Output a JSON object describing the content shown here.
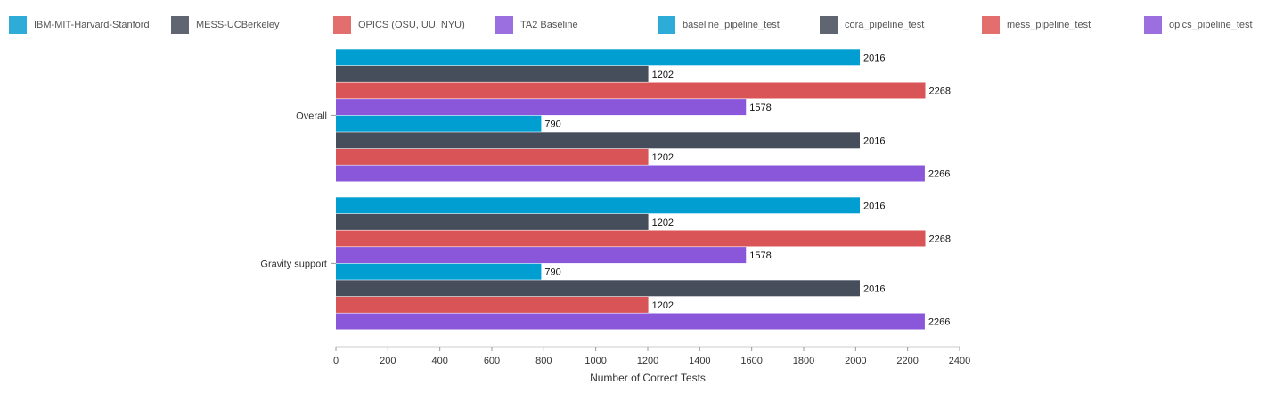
{
  "chart_data": {
    "type": "bar",
    "orientation": "horizontal",
    "categories": [
      "Overall",
      "Gravity support"
    ],
    "legend": [
      {
        "name": "IBM-MIT-Harvard-Stanford",
        "color": "#2cacd6"
      },
      {
        "name": "MESS-UCBerkeley",
        "color": "#5f6672"
      },
      {
        "name": "OPICS (OSU, UU, NYU)",
        "color": "#e36e6e"
      },
      {
        "name": "TA2 Baseline",
        "color": "#9b6fdf"
      },
      {
        "name": "baseline_pipeline_test",
        "color": "#2cacd6"
      },
      {
        "name": "cora_pipeline_test",
        "color": "#5f6672"
      },
      {
        "name": "mess_pipeline_test",
        "color": "#e36e6e"
      },
      {
        "name": "opics_pipeline_test",
        "color": "#9b6fdf"
      }
    ],
    "series": [
      {
        "name": "IBM-MIT-Harvard-Stanford",
        "color": "#019fd1",
        "values": [
          2016,
          2016
        ]
      },
      {
        "name": "MESS-UCBerkeley",
        "color": "#464d5b",
        "values": [
          1202,
          1202
        ]
      },
      {
        "name": "OPICS (OSU, UU, NYU)",
        "color": "#d95456",
        "values": [
          2268,
          2268
        ]
      },
      {
        "name": "TA2 Baseline",
        "color": "#8a57db",
        "values": [
          1578,
          1578
        ]
      },
      {
        "name": "baseline_pipeline_test",
        "color": "#019fd1",
        "values": [
          790,
          790
        ]
      },
      {
        "name": "cora_pipeline_test",
        "color": "#464d5b",
        "values": [
          2016,
          2016
        ]
      },
      {
        "name": "mess_pipeline_test",
        "color": "#d95456",
        "values": [
          1202,
          1202
        ]
      },
      {
        "name": "opics_pipeline_test",
        "color": "#8a57db",
        "values": [
          2266,
          2266
        ]
      }
    ],
    "xlabel": "Number of Correct Tests",
    "ylabel": "",
    "title": "",
    "xlim": [
      0,
      2400
    ],
    "xticks": [
      0,
      200,
      400,
      600,
      800,
      1000,
      1200,
      1400,
      1600,
      1800,
      2000,
      2200,
      2400
    ],
    "grid": false,
    "legend_position": "top"
  }
}
